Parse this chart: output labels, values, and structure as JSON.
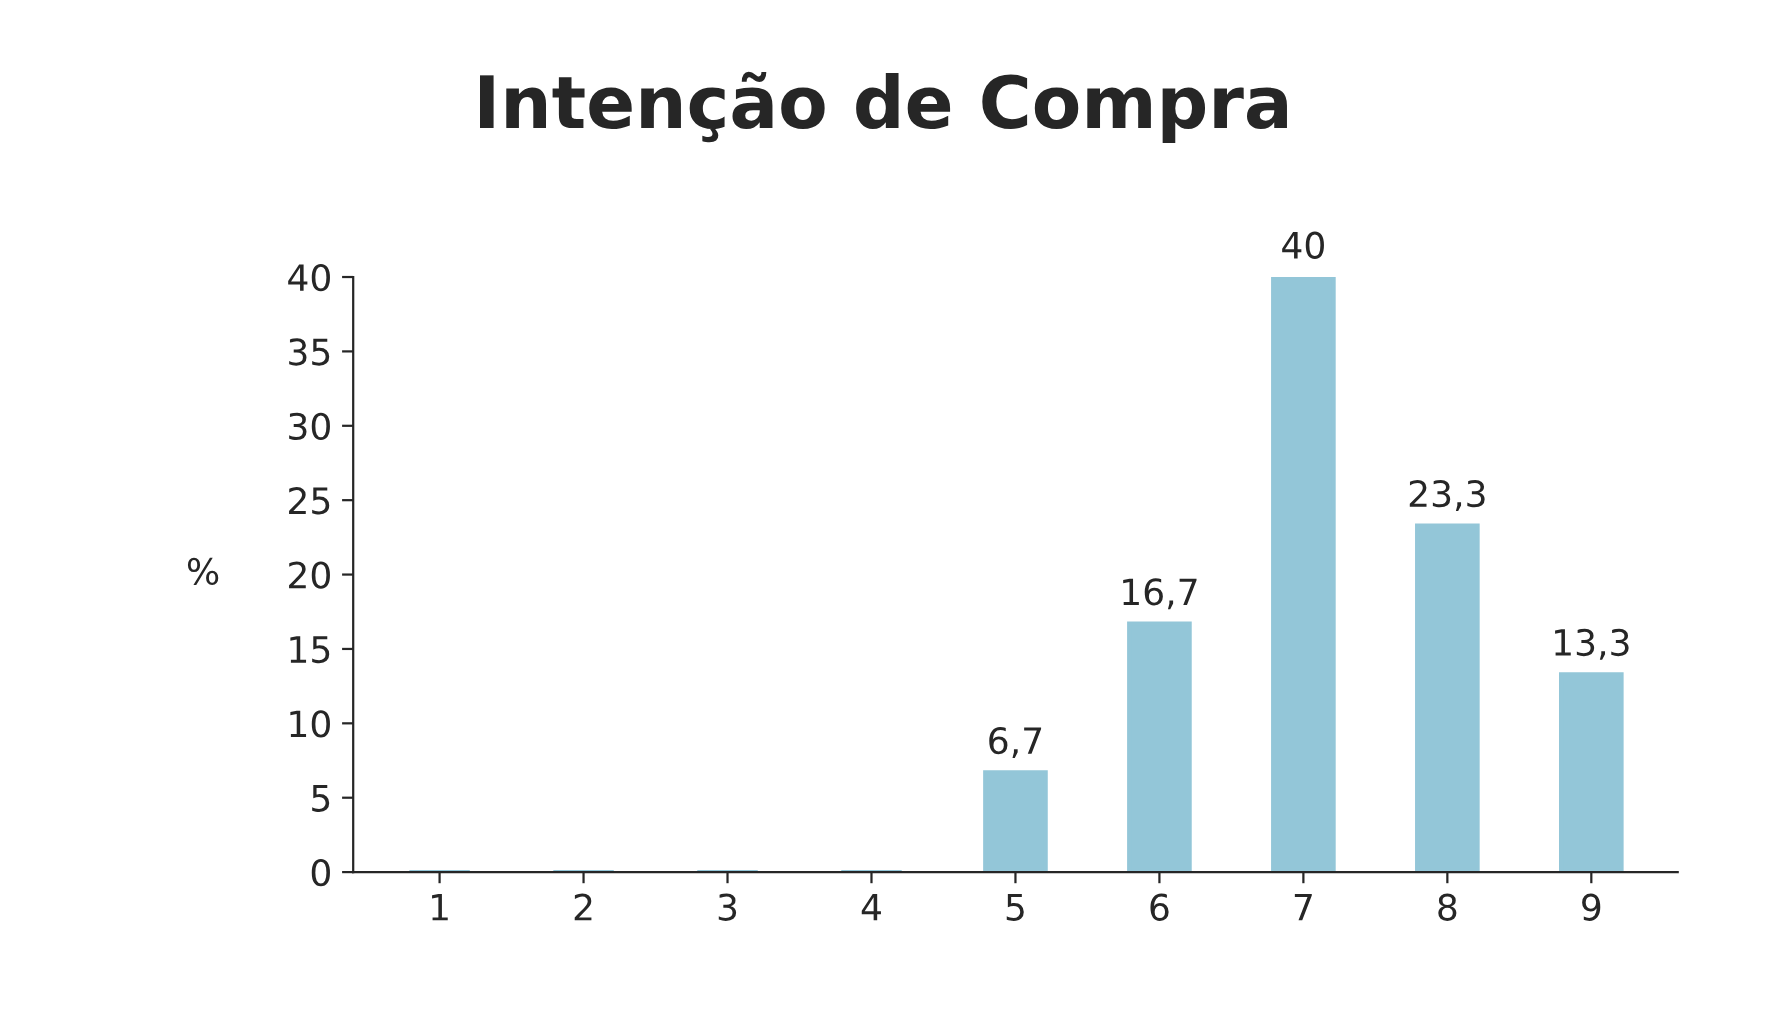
{
  "chart_data": {
    "type": "bar",
    "title": "Intenção de Compra",
    "ylabel": "%",
    "categories": [
      "1",
      "2",
      "3",
      "4",
      "5",
      "6",
      "7",
      "8",
      "9"
    ],
    "values": [
      0,
      0,
      0,
      0,
      6.7,
      16.7,
      40,
      23.3,
      13.3
    ],
    "value_labels": [
      null,
      null,
      null,
      null,
      "6,7",
      "16,7",
      "40",
      "23,3",
      "13,3"
    ],
    "color": "#93c6d8",
    "ylim": [
      0,
      40
    ],
    "yticks": [
      0,
      5,
      10,
      15,
      20,
      25,
      30,
      35,
      40
    ],
    "grid": false,
    "legend": false
  }
}
